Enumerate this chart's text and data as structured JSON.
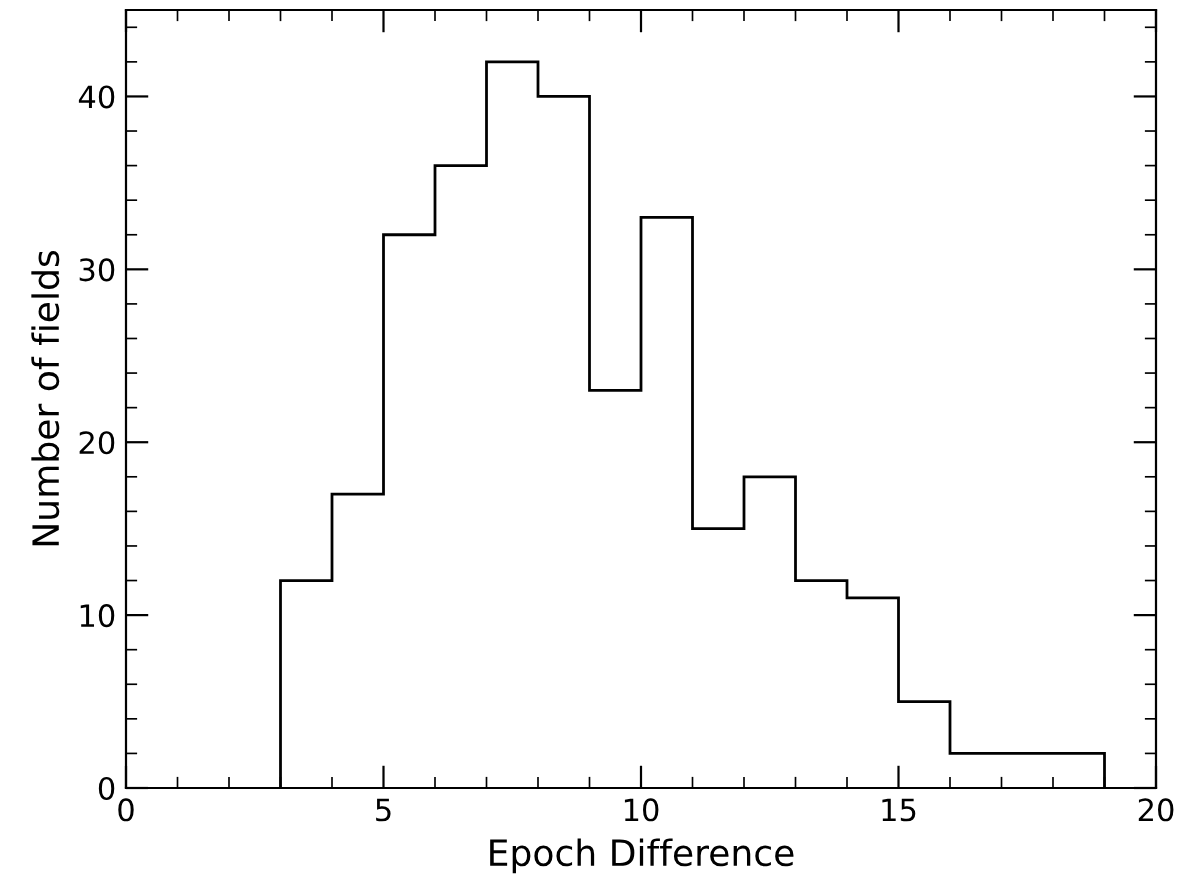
{
  "chart_data": {
    "type": "histogram",
    "xlabel": "Epoch Difference",
    "ylabel": "Number of fields",
    "bins": [
      3,
      4,
      5,
      6,
      7,
      8,
      9,
      10,
      11,
      12,
      13,
      14,
      15,
      16,
      17,
      18,
      19
    ],
    "values": [
      12,
      17,
      32,
      36,
      42,
      40,
      23,
      33,
      15,
      18,
      12,
      11,
      5,
      2,
      2,
      2
    ],
    "color": "#000000",
    "xlim": [
      0,
      20
    ],
    "xticks": [
      0,
      5,
      10,
      15,
      20
    ],
    "ylim": [
      0,
      45
    ],
    "yticks": [
      0,
      10,
      20,
      30,
      40
    ],
    "grid": false
  }
}
